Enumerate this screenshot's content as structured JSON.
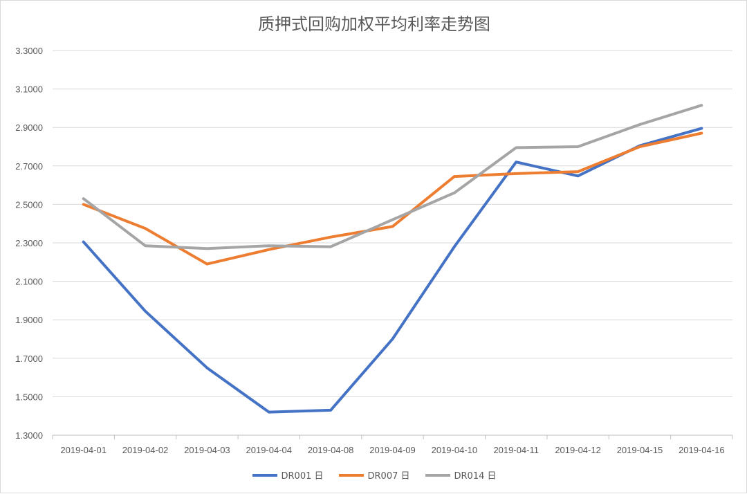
{
  "chart_data": {
    "type": "line",
    "title": "质押式回购加权平均利率走势图",
    "categories": [
      "2019-04-01",
      "2019-04-02",
      "2019-04-03",
      "2019-04-04",
      "2019-04-08",
      "2019-04-09",
      "2019-04-10",
      "2019-04-11",
      "2019-04-12",
      "2019-04-15",
      "2019-04-16"
    ],
    "ylim": [
      1.3,
      3.3
    ],
    "yticks": [
      "1.3000",
      "1.5000",
      "1.7000",
      "1.9000",
      "2.1000",
      "2.3000",
      "2.5000",
      "2.7000",
      "2.9000",
      "3.1000",
      "3.3000"
    ],
    "grid": true,
    "legend_position": "bottom",
    "series": [
      {
        "name": "DR001 日",
        "color": "#4472c4",
        "values": [
          2.305,
          1.945,
          1.65,
          1.42,
          1.43,
          1.8,
          2.28,
          2.72,
          2.648,
          2.805,
          2.895
        ]
      },
      {
        "name": "DR007 日",
        "color": "#ed7d31",
        "values": [
          2.5,
          2.375,
          2.19,
          2.265,
          2.33,
          2.385,
          2.645,
          2.66,
          2.67,
          2.8,
          2.87
        ]
      },
      {
        "name": "DR014 日",
        "color": "#a5a5a5",
        "values": [
          2.53,
          2.285,
          2.27,
          2.285,
          2.28,
          2.42,
          2.56,
          2.795,
          2.8,
          2.915,
          3.015
        ]
      }
    ]
  }
}
